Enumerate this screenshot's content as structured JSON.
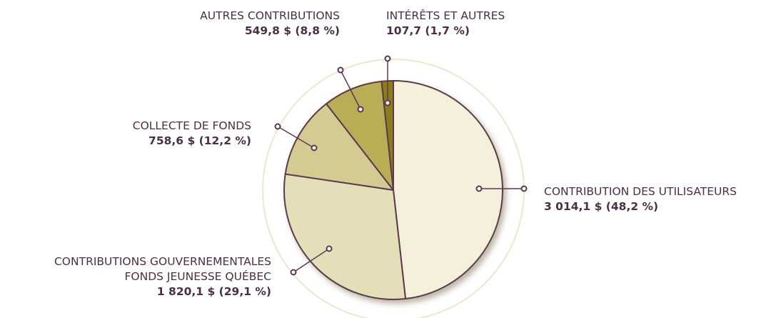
{
  "chart_data": {
    "type": "pie",
    "categories": [
      "CONTRIBUTION DES UTILISATEURS",
      "CONTRIBUTIONS GOUVERNEMENTALES\nFONDS JEUNESSE QUÉBEC",
      "COLLECTE DE FONDS",
      "AUTRES CONTRIBUTIONS",
      "INTÉRÊTS ET AUTRES"
    ],
    "values": [
      3014.1,
      1820.1,
      758.6,
      549.8,
      107.7
    ],
    "value_labels": [
      "3 014,1 $ (48,2 %)",
      "1 820,1 $ (29,1 %)",
      "758,6 $ (12,2 %)",
      "549,8 $ (8,8 %)",
      "107,7 (1,7 %)"
    ],
    "colors": [
      "#f4f0dc",
      "#e5dfb9",
      "#d4cb93",
      "#b9ae55",
      "#8c7b1c"
    ]
  }
}
